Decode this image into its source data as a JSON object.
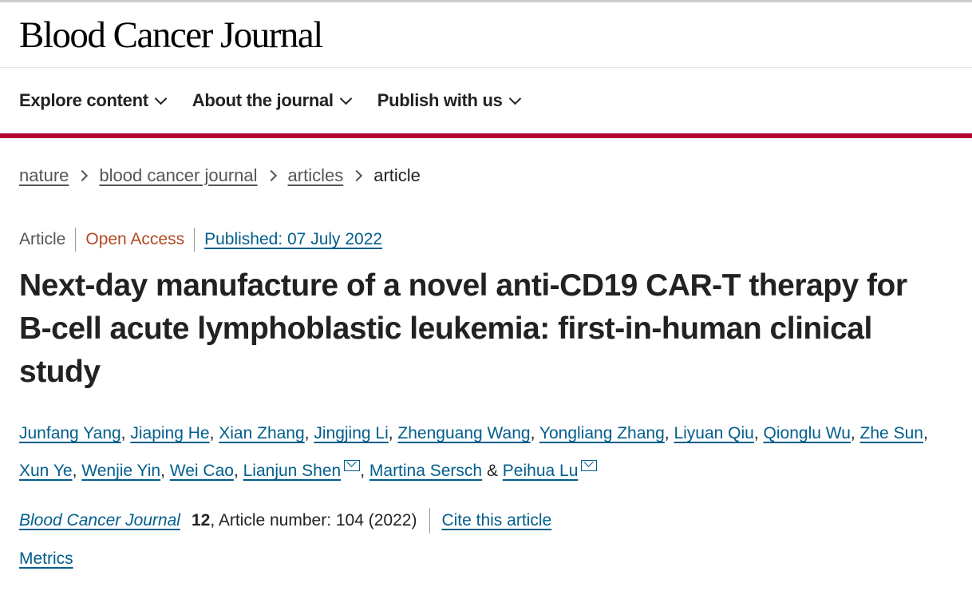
{
  "header": {
    "logo": "Blood Cancer Journal"
  },
  "nav": [
    {
      "label": "Explore content"
    },
    {
      "label": "About the journal"
    },
    {
      "label": "Publish with us"
    }
  ],
  "breadcrumb": [
    {
      "label": "nature"
    },
    {
      "label": "blood cancer journal"
    },
    {
      "label": "articles"
    },
    {
      "label": "article"
    }
  ],
  "meta": {
    "type": "Article",
    "access": "Open Access",
    "published": "Published: 07 July 2022"
  },
  "title": "Next-day manufacture of a novel anti-CD19 CAR-T therapy for B-cell acute lymphoblastic leukemia: first-in-human clinical study",
  "authors": [
    "Junfang Yang",
    "Jiaping He",
    "Xian Zhang",
    "Jingjing Li",
    "Zhenguang Wang",
    "Yongliang Zhang",
    "Liyuan Qiu",
    "Qionglu Wu",
    "Zhe Sun",
    "Xun Ye",
    "Wenjie Yin",
    "Wei Cao",
    "Lianjun Shen",
    "Martina Sersch",
    "Peihua Lu"
  ],
  "author_separators": {
    "comma": ", ",
    "amp": " & "
  },
  "citation": {
    "journal": "Blood Cancer Journal",
    "volume": "12",
    "rest": ", Article number: 104 (2022)",
    "cite_label": "Cite this article"
  },
  "metrics_label": "Metrics",
  "colors": {
    "brand_red": "#b0062f",
    "link": "#025e8d",
    "open_access": "#b24a22"
  }
}
